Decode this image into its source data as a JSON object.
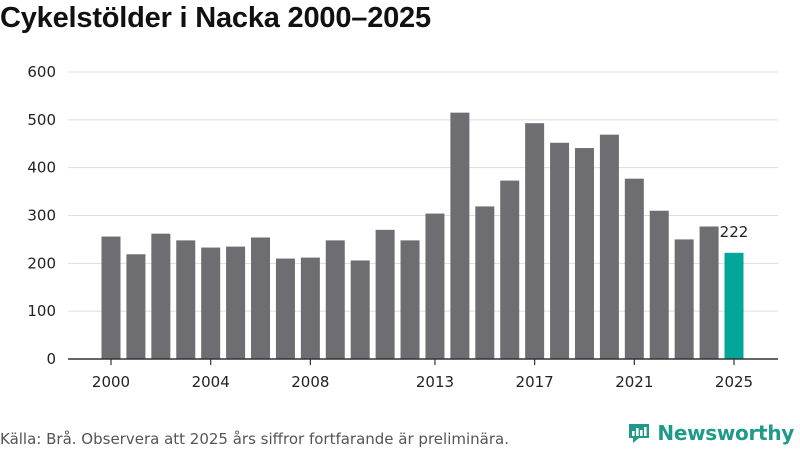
{
  "chart_data": {
    "type": "bar",
    "title": "Cykelstölder i Nacka 2000–2025",
    "categories": [
      "2000",
      "2001",
      "2002",
      "2003",
      "2004",
      "2005",
      "2006",
      "2007",
      "2008",
      "2009",
      "2010",
      "2011",
      "2012",
      "2013",
      "2014",
      "2015",
      "2016",
      "2017",
      "2018",
      "2019",
      "2020",
      "2021",
      "2022",
      "2023",
      "2024",
      "2025"
    ],
    "values": [
      256,
      219,
      262,
      248,
      233,
      235,
      254,
      210,
      212,
      248,
      206,
      270,
      248,
      304,
      515,
      319,
      373,
      493,
      452,
      441,
      469,
      377,
      310,
      250,
      277,
      222
    ],
    "xticks": [
      "2000",
      "2004",
      "2008",
      "2013",
      "2017",
      "2021",
      "2025"
    ],
    "yticks": [
      0,
      100,
      200,
      300,
      400,
      500,
      600
    ],
    "ylim": [
      0,
      600
    ],
    "xlabel": "",
    "ylabel": "",
    "grid": true,
    "highlight_index": 25,
    "highlight_label": "222",
    "colors": {
      "bar": "#6e6d72",
      "highlight": "#00a69a",
      "grid": "#dddddd",
      "axis": "#333333"
    }
  },
  "footer": {
    "source": "Källa: Brå. Observera att 2025 års siffror fortfarande är preliminära.",
    "brand": "Newsworthy"
  }
}
